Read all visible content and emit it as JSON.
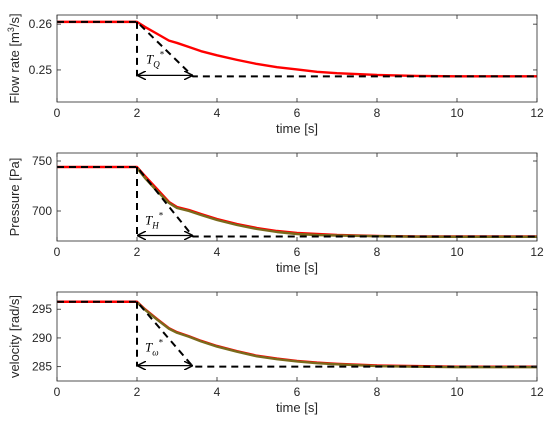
{
  "chart_data": [
    {
      "type": "line",
      "title": "",
      "xlabel": "time [s]",
      "ylabel": "Flow rate [m³/s]",
      "ylabel_parts": {
        "main": "Flow rate [m",
        "sup": "3",
        "rest": "/s]"
      },
      "xlim": [
        0,
        12
      ],
      "ylim": [
        0.243,
        0.262
      ],
      "x_ticks": [
        0,
        2,
        4,
        6,
        8,
        10,
        12
      ],
      "y_ticks": [
        0.25,
        0.26
      ],
      "y_tick_labels": [
        "0.25",
        "0.26"
      ],
      "grid": false,
      "annotation": {
        "base": "T",
        "sub": "Q",
        "sup": "*"
      },
      "series": [
        {
          "color": "#ff0000",
          "style": "solid",
          "x": [
            0,
            2,
            2.2,
            2.5,
            2.8,
            3.0,
            3.3,
            3.6,
            4.0,
            4.5,
            5.0,
            5.5,
            6.0,
            6.5,
            7.0,
            8.0,
            9.0,
            10.0,
            11.0,
            12.0
          ],
          "y": [
            0.2605,
            0.2605,
            0.2594,
            0.2579,
            0.2564,
            0.2559,
            0.255,
            0.2541,
            0.2532,
            0.2522,
            0.2513,
            0.2506,
            0.2501,
            0.2496,
            0.2493,
            0.2489,
            0.2487,
            0.2486,
            0.2486,
            0.2486
          ]
        },
        {
          "color": "#000000",
          "style": "dashed",
          "x": [
            0,
            2,
            3.4,
            12
          ],
          "y": [
            0.2605,
            0.2605,
            0.2486,
            0.2486
          ]
        },
        {
          "color": "#000000",
          "style": "dashed",
          "x": [
            2,
            2
          ],
          "y": [
            0.2605,
            0.2486
          ]
        }
      ],
      "arrow": {
        "x": [
          2,
          3.4
        ],
        "y": 0.2486
      }
    },
    {
      "type": "line",
      "title": "",
      "xlabel": "time [s]",
      "ylabel": "Pressure [Pa]",
      "xlim": [
        0,
        12
      ],
      "ylim": [
        670,
        758
      ],
      "x_ticks": [
        0,
        2,
        4,
        6,
        8,
        10,
        12
      ],
      "y_ticks": [
        700,
        750
      ],
      "y_tick_labels": [
        "700",
        "750"
      ],
      "grid": false,
      "annotation": {
        "base": "T",
        "sub": "H",
        "sup": "*"
      },
      "series": [
        {
          "color": "#ff0000",
          "style": "solid",
          "x": [
            0,
            2,
            2.2,
            2.5,
            2.8,
            3.0,
            3.3,
            3.6,
            4.0,
            4.5,
            5.0,
            5.5,
            6.0,
            6.5,
            7.0,
            8.0,
            9.0,
            10.0,
            11.0,
            12.0
          ],
          "y": [
            744,
            744,
            735,
            722,
            709,
            704,
            701,
            697,
            692,
            687,
            683,
            680,
            678,
            677,
            676,
            675,
            674.5,
            674.5,
            674.5,
            674.5
          ]
        },
        {
          "color": "#7a6a1c",
          "style": "solid",
          "x": [
            2,
            2.2,
            2.5,
            2.8,
            3.0,
            3.3,
            3.6,
            4.0,
            4.5,
            5.0,
            5.5,
            6.0,
            6.5,
            7.0,
            8.0,
            9.0,
            10.0,
            11.0,
            12.0
          ],
          "y": [
            743,
            733,
            720,
            708,
            703,
            700,
            696,
            691,
            686,
            682,
            679,
            677,
            676,
            675.5,
            674.8,
            674.3,
            674.2,
            674.2,
            674.2
          ]
        },
        {
          "color": "#000000",
          "style": "dashed",
          "x": [
            0,
            2,
            3.4,
            12
          ],
          "y": [
            744,
            744,
            674.5,
            674.5
          ]
        },
        {
          "color": "#000000",
          "style": "dashed",
          "x": [
            2,
            2
          ],
          "y": [
            744,
            674.5
          ]
        }
      ],
      "arrow": {
        "x": [
          2,
          3.4
        ],
        "y": 674.5
      }
    },
    {
      "type": "line",
      "title": "",
      "xlabel": "time [s]",
      "ylabel": "velocity [rad/s]",
      "xlim": [
        0,
        12
      ],
      "ylim": [
        282.5,
        298
      ],
      "x_ticks": [
        0,
        2,
        4,
        6,
        8,
        10,
        12
      ],
      "y_ticks": [
        285,
        290,
        295
      ],
      "y_tick_labels": [
        "285",
        "290",
        "295"
      ],
      "grid": false,
      "annotation": {
        "base": "T",
        "sub": "ω",
        "sup": "*"
      },
      "series": [
        {
          "color": "#ff0000",
          "style": "solid",
          "x": [
            0,
            2,
            2.2,
            2.5,
            2.8,
            3.0,
            3.3,
            3.6,
            4.0,
            4.5,
            5.0,
            5.5,
            6.0,
            6.5,
            7.0,
            8.0,
            9.0,
            10.0,
            11.0,
            12.0
          ],
          "y": [
            296.3,
            296.3,
            295.0,
            293.3,
            291.7,
            291.0,
            290.3,
            289.5,
            288.6,
            287.7,
            286.9,
            286.4,
            286.0,
            285.7,
            285.5,
            285.2,
            285.1,
            285.0,
            285.0,
            285.0
          ]
        },
        {
          "color": "#7a6a1c",
          "style": "solid",
          "x": [
            2,
            2.2,
            2.5,
            2.8,
            3.0,
            3.3,
            3.6,
            4.0,
            4.5,
            5.0,
            5.5,
            6.0,
            6.5,
            7.0,
            8.0,
            9.0,
            10.0,
            11.0,
            12.0
          ],
          "y": [
            296.2,
            294.9,
            293.2,
            291.6,
            290.9,
            290.2,
            289.4,
            288.5,
            287.6,
            286.8,
            286.3,
            285.9,
            285.6,
            285.4,
            285.1,
            285.0,
            284.9,
            284.9,
            284.9
          ]
        },
        {
          "color": "#000000",
          "style": "dashed",
          "x": [
            0,
            2,
            3.4,
            12
          ],
          "y": [
            296.3,
            296.3,
            285.0,
            285.0
          ]
        },
        {
          "color": "#000000",
          "style": "dashed",
          "x": [
            2,
            2
          ],
          "y": [
            296.3,
            285.0
          ]
        }
      ],
      "arrow": {
        "x": [
          2,
          3.4
        ],
        "y": 285.0
      }
    }
  ]
}
